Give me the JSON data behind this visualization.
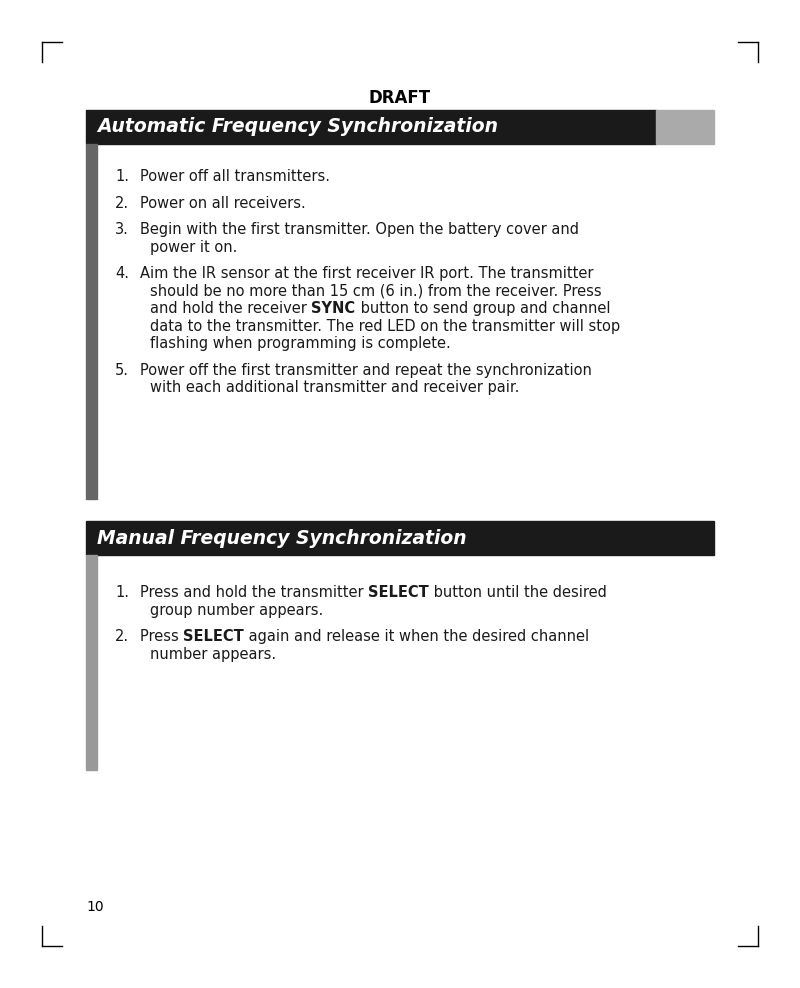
{
  "page_bg": "#ffffff",
  "outer_bg": "#cccccc",
  "draft_text": "DRAFT",
  "page_number": "10",
  "section1_title": "Automatic Frequency Synchronization",
  "section1_header_bg": "#1a1a1a",
  "section1_header_text_color": "#ffffff",
  "section1_gray_block_color": "#aaaaaa",
  "section1_left_bar_color": "#666666",
  "section2_title": "Manual Frequency Synchronization",
  "section2_header_bg": "#1a1a1a",
  "section2_header_text_color": "#ffffff",
  "section2_left_bar_color": "#999999",
  "font_size_body": 10.5,
  "font_size_header": 13.5,
  "font_size_draft": 12,
  "font_size_page_num": 10
}
